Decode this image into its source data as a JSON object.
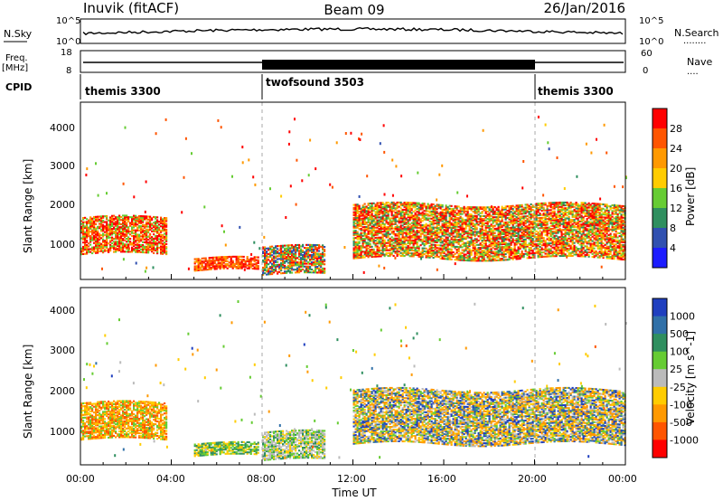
{
  "header": {
    "station": "Inuvik (fitACF)",
    "beam": "Beam 09",
    "date": "26/Jan/2016"
  },
  "left_labels": {
    "nsky": "N.Sky",
    "freq_line1": "Freq.",
    "freq_line2": "[MHz]",
    "cpid": "CPID"
  },
  "right_labels": {
    "nsearch": "N.Search",
    "nsearch_dots": "........",
    "nave": "Nave",
    "nave_dots": "...."
  },
  "strip_ticks": {
    "nsky_left_top": "10^5",
    "nsky_left_bot": "10^0",
    "nsky_right_top": "10^5",
    "nsky_right_bot": "10^0",
    "freq_top": "18",
    "freq_bot": "8",
    "nave_top": "60",
    "nave_bot": "0"
  },
  "cpid_segments": [
    {
      "name": "themis 3300",
      "start": "00:00",
      "end": "07:55"
    },
    {
      "name": "twofsound 3503",
      "start": "07:55",
      "end": "19:55"
    },
    {
      "name": "themis 3300",
      "start": "19:55",
      "end": "00:00"
    }
  ],
  "chart_data": [
    {
      "type": "heatmap",
      "parameter": "power",
      "ylabel": "Slant Range [km]",
      "ylim": [
        200,
        4500
      ],
      "yticks": [
        "1000",
        "2000",
        "3000",
        "4000"
      ],
      "colorbar_label": "Power [dB]",
      "colorbar_ticks": [
        "4",
        "8",
        "12",
        "16",
        "20",
        "24",
        "28"
      ],
      "colorbar_colors": [
        "#1c1cff",
        "#3050b0",
        "#2f8f5f",
        "#66cc33",
        "#ffcc00",
        "#ff9900",
        "#ff5500",
        "#ff0000"
      ],
      "echo_regions": [
        {
          "start": "00:00",
          "end": "03:45",
          "range_km": [
            800,
            1700
          ],
          "dominant": "strong"
        },
        {
          "start": "05:00",
          "end": "07:50",
          "range_km": [
            400,
            700
          ],
          "dominant": "strong"
        },
        {
          "start": "08:00",
          "end": "10:45",
          "range_km": [
            300,
            1000
          ],
          "dominant": "mixed"
        },
        {
          "start": "12:00",
          "end": "23:59",
          "range_km": [
            700,
            2000
          ],
          "dominant": "mixed"
        }
      ]
    },
    {
      "type": "heatmap",
      "parameter": "velocity",
      "ylabel": "Slant Range [km]",
      "ylim": [
        200,
        4500
      ],
      "yticks": [
        "1000",
        "2000",
        "3000",
        "4000"
      ],
      "colorbar_label": "Velocity [m s^-1]",
      "colorbar_ticks": [
        "1000",
        "500",
        "100",
        "25",
        "-25",
        "-100",
        "-500",
        "-1000"
      ],
      "colorbar_colors": [
        "#1f3fbf",
        "#3070a8",
        "#2f8f5f",
        "#66cc33",
        "#bbbbbb",
        "#ffcc00",
        "#ff9900",
        "#ff5500",
        "#ff0000"
      ],
      "echo_regions": [
        {
          "start": "00:00",
          "end": "03:45",
          "range_km": [
            800,
            1700
          ],
          "dominant": "orange"
        },
        {
          "start": "05:00",
          "end": "07:50",
          "range_km": [
            400,
            700
          ],
          "dominant": "green"
        },
        {
          "start": "08:00",
          "end": "10:45",
          "range_km": [
            300,
            1000
          ],
          "dominant": "grey-green"
        },
        {
          "start": "12:00",
          "end": "23:59",
          "range_km": [
            700,
            2000
          ],
          "dominant": "orange-blue"
        }
      ]
    }
  ],
  "x_axis": {
    "label": "Time UT",
    "ticks": [
      "00:00",
      "04:00",
      "08:00",
      "12:00",
      "16:00",
      "20:00",
      "00:00"
    ]
  }
}
